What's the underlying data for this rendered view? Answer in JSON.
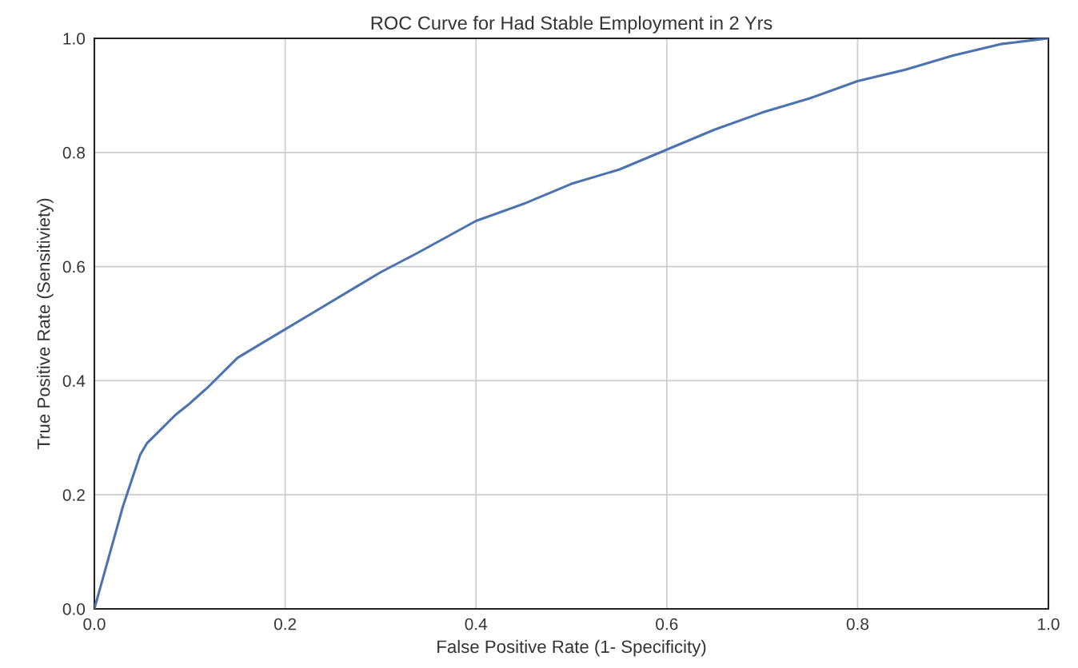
{
  "chart_data": {
    "type": "line",
    "title": "ROC Curve for Had Stable Employment in 2 Yrs",
    "xlabel": "False Positive Rate (1- Specificity)",
    "ylabel": "True Positive Rate (Sensitiviety)",
    "series": [
      {
        "color": "#4c72b0",
        "x": [
          0,
          0.01,
          0.02,
          0.03,
          0.04,
          0.048,
          0.055,
          0.07,
          0.085,
          0.1,
          0.12,
          0.15,
          0.18,
          0.2,
          0.23,
          0.27,
          0.3,
          0.34,
          0.4,
          0.45,
          0.5,
          0.55,
          0.6,
          0.65,
          0.7,
          0.75,
          0.8,
          0.85,
          0.9,
          0.95,
          1.0
        ],
        "values": [
          0,
          0.06,
          0.12,
          0.18,
          0.23,
          0.27,
          0.29,
          0.315,
          0.34,
          0.36,
          0.39,
          0.44,
          0.47,
          0.49,
          0.52,
          0.56,
          0.59,
          0.625,
          0.68,
          0.71,
          0.745,
          0.77,
          0.805,
          0.84,
          0.87,
          0.895,
          0.925,
          0.945,
          0.97,
          0.99,
          1.0
        ]
      }
    ],
    "xlim": [
      0,
      1.0
    ],
    "ylim": [
      0,
      1.0
    ],
    "xticks": [
      {
        "value": 0,
        "label": "0.0"
      },
      0.2,
      0.4,
      0.6,
      0.8,
      {
        "value": 1,
        "label": "1.0"
      }
    ],
    "yticks": [
      {
        "value": 0,
        "label": "0.0"
      },
      0.2,
      0.4,
      0.6,
      0.8,
      {
        "value": 1,
        "label": "1.0"
      }
    ],
    "grid": true,
    "legend": false
  }
}
